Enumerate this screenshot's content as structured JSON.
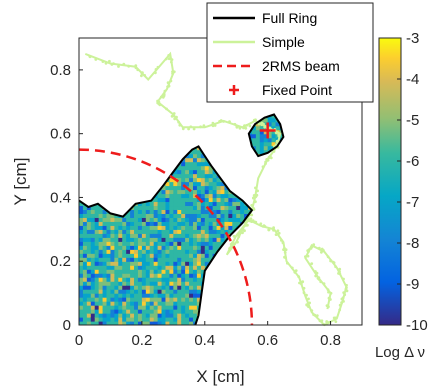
{
  "chart_data": {
    "type": "heatmap",
    "xlabel": "X [cm]",
    "ylabel": "Y [cm]",
    "xlim": [
      0,
      0.9
    ],
    "ylim": [
      0,
      0.9
    ],
    "xticks": [
      "0",
      "0.2",
      "0.4",
      "0.6",
      "0.8"
    ],
    "yticks": [
      "0",
      "0.2",
      "0.4",
      "0.6",
      "0.8"
    ],
    "colorbar": {
      "label": "Log Δ ν",
      "range": [
        -10,
        -3
      ],
      "ticks": [
        "-3",
        "-4",
        "-5",
        "-6",
        "-7",
        "-8",
        "-9",
        "-10"
      ],
      "colormap": "parula"
    },
    "legend": {
      "placement": "top-right",
      "entries": [
        {
          "label": "Full Ring",
          "color": "#000000",
          "style": "solid"
        },
        {
          "label": "Simple",
          "color": "#ccf29a",
          "style": "solid"
        },
        {
          "label": "2RMS beam",
          "color": "#ee1c1c",
          "style": "dashed"
        },
        {
          "label": "Fixed Point",
          "color": "#ee1c1c",
          "style": "plus-marker"
        }
      ]
    },
    "fixed_point": {
      "x": 0.6,
      "y": 0.61
    },
    "rms_beam_radius": 0.55,
    "full_ring_boundary": [
      [
        0,
        0.39
      ],
      [
        0.03,
        0.37
      ],
      [
        0.06,
        0.38
      ],
      [
        0.1,
        0.35
      ],
      [
        0.14,
        0.34
      ],
      [
        0.18,
        0.38
      ],
      [
        0.23,
        0.39
      ],
      [
        0.27,
        0.44
      ],
      [
        0.3,
        0.48
      ],
      [
        0.33,
        0.52
      ],
      [
        0.36,
        0.55
      ],
      [
        0.38,
        0.56
      ],
      [
        0.4,
        0.53
      ],
      [
        0.42,
        0.5
      ],
      [
        0.45,
        0.46
      ],
      [
        0.48,
        0.42
      ],
      [
        0.52,
        0.39
      ],
      [
        0.55,
        0.36
      ],
      [
        0.52,
        0.32
      ],
      [
        0.48,
        0.28
      ],
      [
        0.44,
        0.23
      ],
      [
        0.4,
        0.17
      ],
      [
        0.39,
        0.1
      ],
      [
        0.38,
        0.03
      ],
      [
        0.37,
        0
      ],
      [
        0,
        0
      ]
    ],
    "island_boundary": [
      [
        0.54,
        0.6
      ],
      [
        0.56,
        0.63
      ],
      [
        0.59,
        0.65
      ],
      [
        0.62,
        0.66
      ],
      [
        0.64,
        0.63
      ],
      [
        0.65,
        0.59
      ],
      [
        0.63,
        0.56
      ],
      [
        0.6,
        0.54
      ],
      [
        0.57,
        0.53
      ],
      [
        0.55,
        0.56
      ]
    ],
    "simple_path": [
      [
        0.02,
        0.85
      ],
      [
        0.1,
        0.82
      ],
      [
        0.18,
        0.81
      ],
      [
        0.22,
        0.77
      ],
      [
        0.29,
        0.85
      ],
      [
        0.3,
        0.79
      ],
      [
        0.28,
        0.74
      ],
      [
        0.25,
        0.7
      ],
      [
        0.3,
        0.66
      ],
      [
        0.33,
        0.62
      ],
      [
        0.4,
        0.62
      ],
      [
        0.46,
        0.64
      ],
      [
        0.52,
        0.62
      ],
      [
        0.56,
        0.64
      ],
      [
        0.6,
        0.62
      ],
      [
        0.64,
        0.6
      ],
      [
        0.63,
        0.56
      ],
      [
        0.6,
        0.52
      ],
      [
        0.57,
        0.46
      ],
      [
        0.56,
        0.4
      ],
      [
        0.55,
        0.36
      ],
      [
        0.53,
        0.32
      ],
      [
        0.5,
        0.26
      ],
      [
        0.47,
        0.22
      ],
      [
        0.5,
        0.28
      ],
      [
        0.54,
        0.33
      ],
      [
        0.58,
        0.31
      ],
      [
        0.62,
        0.3
      ],
      [
        0.65,
        0.26
      ],
      [
        0.66,
        0.2
      ],
      [
        0.7,
        0.15
      ],
      [
        0.72,
        0.09
      ],
      [
        0.74,
        0.04
      ],
      [
        0.78,
        0.0
      ],
      [
        0.82,
        0.02
      ],
      [
        0.84,
        0.08
      ],
      [
        0.85,
        0.12
      ],
      [
        0.82,
        0.18
      ],
      [
        0.78,
        0.23
      ],
      [
        0.74,
        0.25
      ],
      [
        0.72,
        0.21
      ],
      [
        0.76,
        0.15
      ],
      [
        0.8,
        0.1
      ],
      [
        0.79,
        0.05
      ]
    ]
  }
}
